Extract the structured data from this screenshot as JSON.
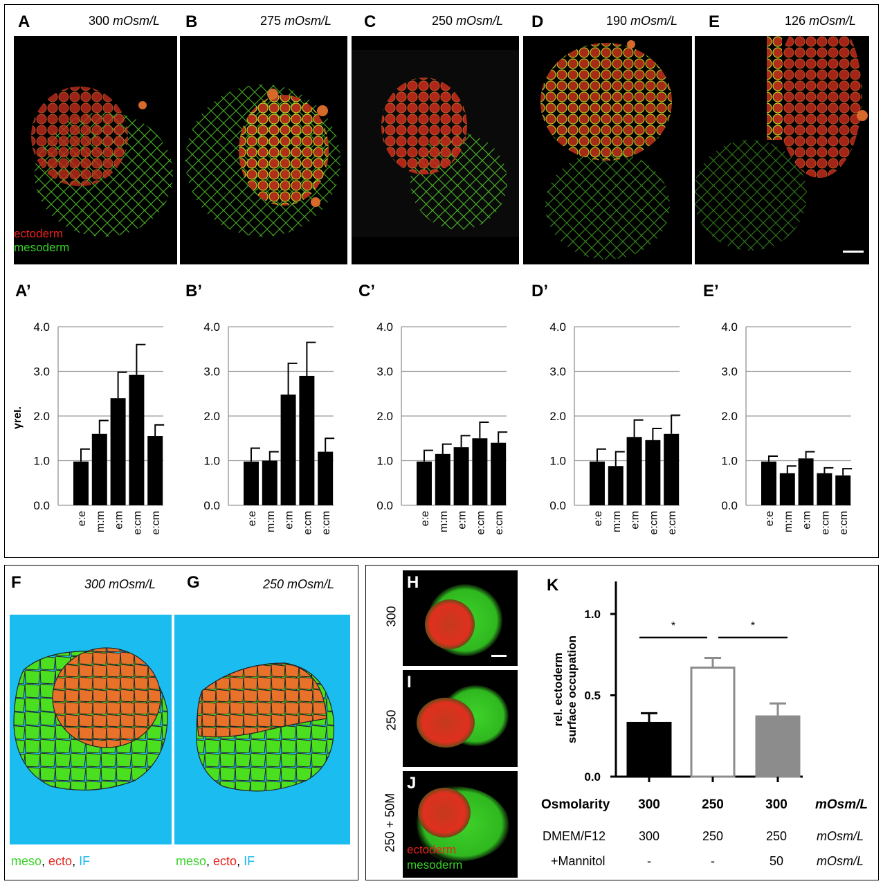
{
  "top": {
    "panels": [
      {
        "letter": "A",
        "osm_value": "300",
        "osm_unit": "mOsm/L"
      },
      {
        "letter": "B",
        "osm_value": "275",
        "osm_unit": "mOsm/L"
      },
      {
        "letter": "C",
        "osm_value": "250",
        "osm_unit": "mOsm/L"
      },
      {
        "letter": "D",
        "osm_value": "190",
        "osm_unit": "mOsm/L"
      },
      {
        "letter": "E",
        "osm_value": "126",
        "osm_unit": "mOsm/L"
      }
    ],
    "legend": {
      "ectoderm": "ectoderm",
      "mesoderm": "mesoderm"
    }
  },
  "chart_data": [
    {
      "type": "bar",
      "panel": "A’",
      "categories": [
        "e:e",
        "m:m",
        "e:m",
        "e:cm",
        "e:cm"
      ],
      "values": [
        0.98,
        1.6,
        2.4,
        2.92,
        1.55
      ],
      "errors": [
        0.28,
        0.3,
        0.58,
        0.68,
        0.25
      ],
      "ylabel": "γrel.",
      "ylim": [
        0,
        4
      ],
      "yticks": [
        "0.0",
        "1.0",
        "2.0",
        "3.0",
        "4.0"
      ],
      "grid": true
    },
    {
      "type": "bar",
      "panel": "B’",
      "categories": [
        "e:e",
        "m:m",
        "e:m",
        "e:cm",
        "e:cm"
      ],
      "values": [
        0.98,
        1.0,
        2.48,
        2.9,
        1.2
      ],
      "errors": [
        0.3,
        0.2,
        0.7,
        0.75,
        0.3
      ],
      "ylabel": "",
      "ylim": [
        0,
        4
      ],
      "yticks": [
        "0.0",
        "1.0",
        "2.0",
        "3.0",
        "4.0"
      ],
      "grid": true
    },
    {
      "type": "bar",
      "panel": "C’",
      "categories": [
        "e:e",
        "m:m",
        "e:m",
        "e:cm",
        "e:cm"
      ],
      "values": [
        0.98,
        1.15,
        1.3,
        1.5,
        1.4
      ],
      "errors": [
        0.25,
        0.22,
        0.26,
        0.36,
        0.24
      ],
      "ylabel": "",
      "ylim": [
        0,
        4
      ],
      "yticks": [
        "0.0",
        "1.0",
        "2.0",
        "3.0",
        "4.0"
      ],
      "grid": true
    },
    {
      "type": "bar",
      "panel": "D’",
      "categories": [
        "e:e",
        "m:m",
        "e:m",
        "e:cm",
        "e:cm"
      ],
      "values": [
        0.98,
        0.88,
        1.53,
        1.46,
        1.6
      ],
      "errors": [
        0.28,
        0.32,
        0.38,
        0.26,
        0.42
      ],
      "ylabel": "",
      "ylim": [
        0,
        4
      ],
      "yticks": [
        "0.0",
        "1.0",
        "2.0",
        "3.0",
        "4.0"
      ],
      "grid": true
    },
    {
      "type": "bar",
      "panel": "E’",
      "categories": [
        "e:e",
        "m:m",
        "e:m",
        "e:cm",
        "e:cm"
      ],
      "values": [
        0.98,
        0.72,
        1.05,
        0.72,
        0.67
      ],
      "errors": [
        0.12,
        0.16,
        0.15,
        0.12,
        0.15
      ],
      "ylabel": "",
      "ylim": [
        0,
        4
      ],
      "yticks": [
        "0.0",
        "1.0",
        "2.0",
        "3.0",
        "4.0"
      ],
      "grid": true
    },
    {
      "type": "bar",
      "panel": "K",
      "categories": [
        "300",
        "250",
        "300"
      ],
      "values": [
        0.33,
        0.67,
        0.37
      ],
      "errors": [
        0.06,
        0.06,
        0.08
      ],
      "ylabel_lines": [
        "rel. ectoderm",
        "surface occupation"
      ],
      "ylim": [
        0,
        1.2
      ],
      "yticks": [
        "0.0",
        "0.5",
        "1.0"
      ],
      "bar_colors": [
        "#000000",
        "#ffffff",
        "#8c8c8c"
      ],
      "edge_colors": [
        "#000000",
        "#8c8c8c",
        "#8c8c8c"
      ],
      "significance": [
        "*",
        "*"
      ]
    }
  ],
  "schematics": [
    {
      "letter": "F",
      "osm": "300 mOsm/L",
      "legend": {
        "meso": "meso",
        "sep1": ", ",
        "ecto": "ecto",
        "sep2": ", ",
        "if": "IF"
      }
    },
    {
      "letter": "G",
      "osm": "250 mOsm/L",
      "legend": {
        "meso": "meso",
        "sep1": ", ",
        "ecto": "ecto",
        "sep2": ", ",
        "if": "IF"
      }
    }
  ],
  "aggregates": [
    {
      "letter": "H",
      "side_label": "300"
    },
    {
      "letter": "I",
      "side_label": "250"
    },
    {
      "letter": "J",
      "side_label": "250 + 50M"
    }
  ],
  "aggregate_legend": {
    "ectoderm": "ectoderm",
    "mesoderm": "mesoderm"
  },
  "table_k": {
    "rows": [
      {
        "label": "Osmolarity",
        "values": [
          "300",
          "250",
          "300"
        ],
        "unit": "mOsm/L",
        "bold": true
      },
      {
        "label": "DMEM/F12",
        "values": [
          "300",
          "250",
          "250"
        ],
        "unit": "mOsm/L",
        "bold": false
      },
      {
        "label": "+Mannitol",
        "values": [
          "-",
          "-",
          "50"
        ],
        "unit": "mOsm/L",
        "bold": false
      }
    ]
  },
  "colors": {
    "ecto": "#e8722a",
    "meso": "#4ae01f",
    "if": "#1bbdf0",
    "red": "#e8231f",
    "green": "#39d12a"
  }
}
